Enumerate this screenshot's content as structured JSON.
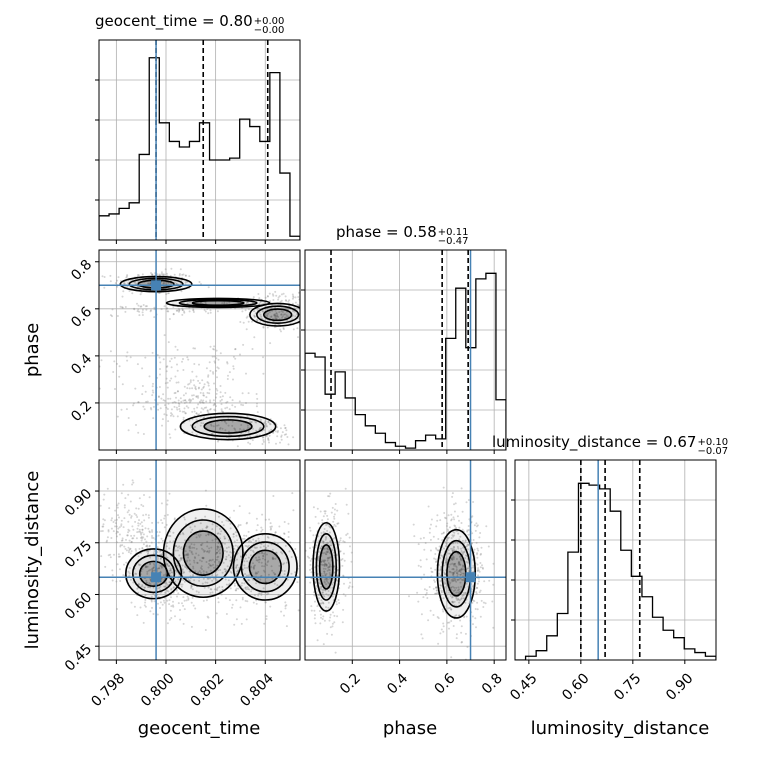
{
  "chart_data": {
    "type": "corner",
    "parameters": [
      "geocent_time",
      "phase",
      "luminosity_distance"
    ],
    "truths": {
      "geocent_time": 0.7996,
      "phase": 0.7,
      "luminosity_distance": 0.65
    },
    "truth_color": "#4682b4",
    "titles": [
      {
        "param": "geocent_time",
        "median": "0.80",
        "plus": "+0.00",
        "minus": "−0.00"
      },
      {
        "param": "phase",
        "median": "0.58",
        "plus": "+0.11",
        "minus": "−0.47"
      },
      {
        "param": "luminosity_distance",
        "median": "0.67",
        "plus": "+0.10",
        "minus": "−0.07"
      }
    ],
    "ranges": {
      "geocent_time": [
        0.7973,
        0.8054
      ],
      "phase": [
        0.0,
        0.85
      ],
      "luminosity_distance": [
        0.41,
        0.99
      ]
    },
    "ticks": {
      "geocent_time": {
        "values": [
          0.798,
          0.8,
          0.802,
          0.804
        ],
        "labels": [
          "0.798",
          "0.800",
          "0.802",
          "0.804"
        ]
      },
      "phase": {
        "values": [
          0.2,
          0.4,
          0.6,
          0.8
        ],
        "labels": [
          "0.2",
          "0.4",
          "0.6",
          "0.8"
        ]
      },
      "luminosity_distance": {
        "values": [
          0.45,
          0.6,
          0.75,
          0.9
        ],
        "labels": [
          "0.45",
          "0.60",
          "0.75",
          "0.90"
        ]
      }
    },
    "quantiles": {
      "geocent_time": [
        0.7996,
        0.8015,
        0.8041
      ],
      "phase": [
        0.11,
        0.58,
        0.69
      ],
      "luminosity_distance": [
        0.6,
        0.67,
        0.77
      ]
    },
    "histograms": {
      "geocent_time": [
        0.13,
        0.14,
        0.17,
        0.2,
        0.46,
        0.98,
        0.63,
        0.53,
        0.5,
        0.53,
        0.63,
        0.43,
        0.43,
        0.44,
        0.65,
        0.61,
        0.53,
        0.9,
        0.36,
        0.02
      ],
      "phase": [
        0.52,
        0.5,
        0.3,
        0.42,
        0.28,
        0.19,
        0.13,
        0.09,
        0.04,
        0.02,
        0.01,
        0.05,
        0.08,
        0.06,
        0.6,
        0.87,
        0.55,
        0.92,
        0.95,
        0.27
      ],
      "luminosity_distance": [
        0.0,
        0.02,
        0.05,
        0.13,
        0.25,
        0.58,
        0.95,
        0.94,
        0.92,
        0.8,
        0.59,
        0.45,
        0.34,
        0.23,
        0.16,
        0.12,
        0.06,
        0.04,
        0.02
      ]
    },
    "grid": true,
    "axis_labels": {
      "geocent_time": "geocent_time",
      "phase": "phase",
      "luminosity_distance": "luminosity_distance"
    }
  }
}
